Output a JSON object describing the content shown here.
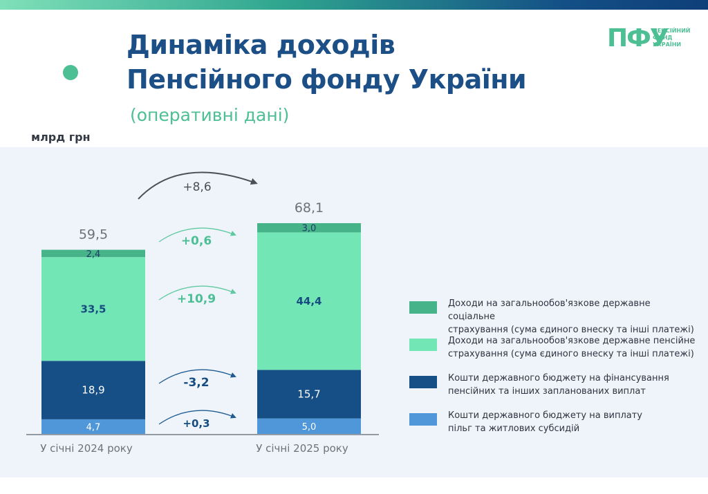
{
  "header": {
    "title_line1": "Динаміка доходів",
    "title_line2": "Пенсійного фонду України",
    "subtitle": "(оперативні дані)",
    "unit": "млрд грн"
  },
  "logo": {
    "mark": "ПФУ",
    "line1": "ПЕНСІЙНИЙ",
    "line2": "ФОНД",
    "line3": "УКРАЇНИ"
  },
  "colors": {
    "social": "#46b389",
    "pension": "#72e6b5",
    "budget_pension": "#164f85",
    "budget_benefits": "#4f97d8",
    "title": "#1b4f86",
    "accent": "#4dbf94"
  },
  "legend": [
    {
      "line1": "Доходи на загальнообов'язкове державне соціальне",
      "line2": "страхування (сума єдиного внеску та інші платежі)",
      "color": "#46b389"
    },
    {
      "line1": "Доходи на загальнообов'язкове державне пенсійне",
      "line2": "страхування (сума єдиного внеску та інші платежі)",
      "color": "#72e6b5"
    },
    {
      "line1": "Кошти державного бюджету на фінансування",
      "line2": "пенсійних та інших запланованих виплат",
      "color": "#164f85"
    },
    {
      "line1": "Кошти державного бюджету на виплату",
      "line2": "пільг та житлових субсидій",
      "color": "#4f97d8"
    }
  ],
  "chart_data": {
    "type": "bar",
    "stacked": true,
    "categories": [
      "У січні 2024 року",
      "У січні 2025 року"
    ],
    "totals": [
      "59,5",
      "68,1"
    ],
    "total_values": [
      59.5,
      68.1
    ],
    "series": [
      {
        "name": "Кошти державного бюджету на виплату пільг та житлових субсидій",
        "values": [
          4.7,
          5.0
        ],
        "labels": [
          "4,7",
          "5,0"
        ],
        "color": "#4f97d8"
      },
      {
        "name": "Кошти державного бюджету на фінансування пенсійних та інших запланованих виплат",
        "values": [
          18.9,
          15.7
        ],
        "labels": [
          "18,9",
          "15,7"
        ],
        "color": "#164f85"
      },
      {
        "name": "Доходи на загальнообов'язкове державне пенсійне страхування (сума єдиного внеску та інші платежі)",
        "values": [
          33.5,
          44.4
        ],
        "labels": [
          "33,5",
          "44,4"
        ],
        "color": "#72e6b5"
      },
      {
        "name": "Доходи на загальнообов'язкове державне соціальне страхування (сума єдиного внеску та інші платежі)",
        "values": [
          2.4,
          3.0
        ],
        "labels": [
          "2,4",
          "3,0"
        ],
        "color": "#46b389"
      }
    ],
    "changes": {
      "total": "+8,6",
      "by_series": [
        "+0,3",
        "-3,2",
        "+10,9",
        "+0,6"
      ]
    },
    "ylim": [
      0,
      68.1
    ],
    "grid": false,
    "legend_position": "right"
  }
}
